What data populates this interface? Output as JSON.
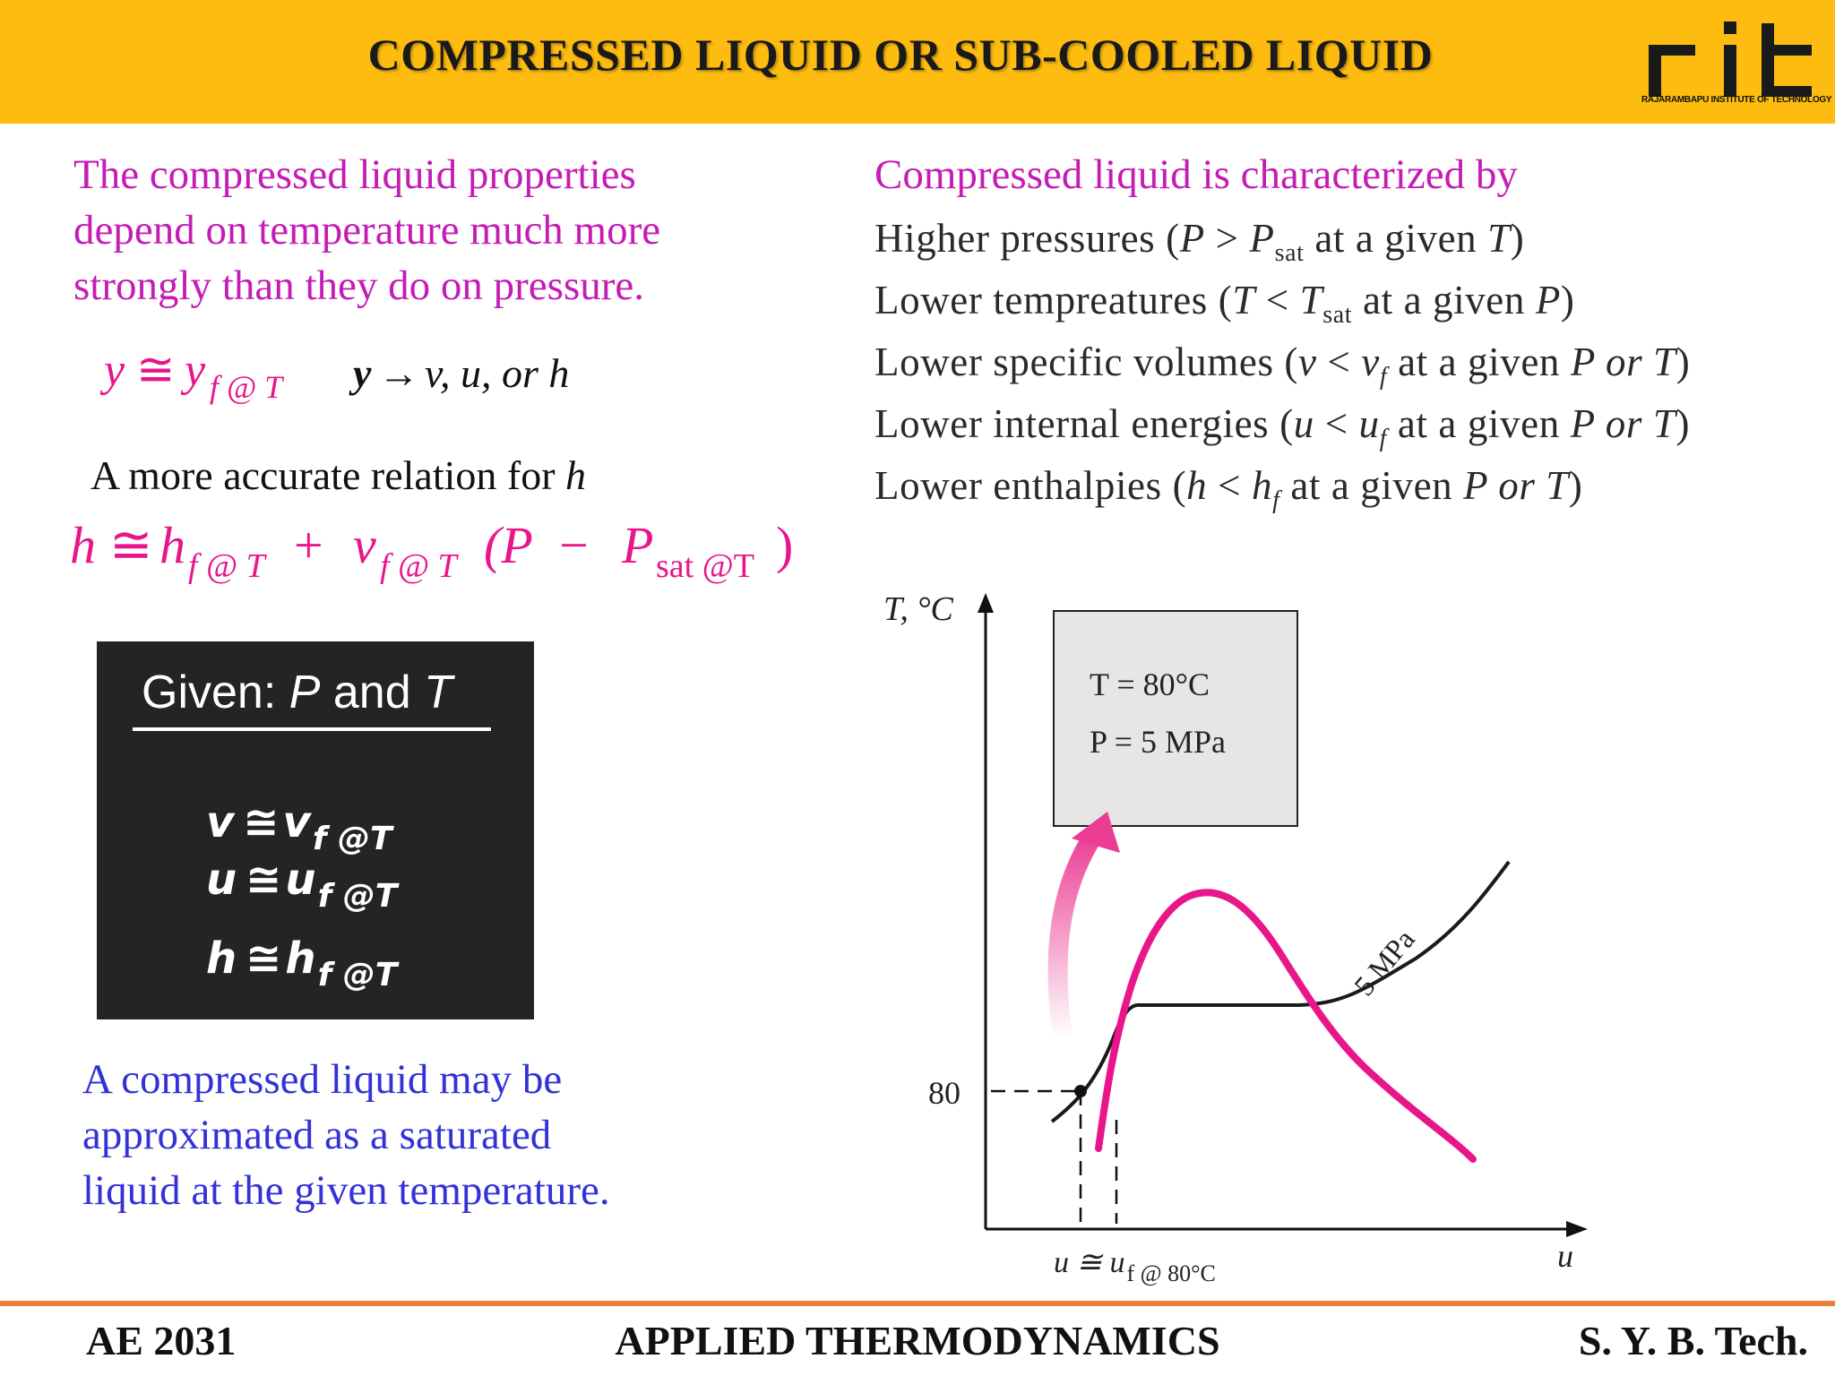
{
  "header": {
    "title": "COMPRESSED LIQUID OR SUB-COOLED LIQUID",
    "logo_caption": "RAJARAMBAPU INSTITUTE OF TECHNOLOGY",
    "logo_color": "#1a1a1a",
    "accent": "#fdbc0f"
  },
  "left": {
    "intro": "The compressed liquid properties depend on temperature much more strongly than they do on pressure.",
    "approx_formula": {
      "lhs": "y",
      "approx": "≅",
      "rhs_main": "y",
      "rhs_sub": "f @ T",
      "y": "y",
      "arrow": "→",
      "list": "v, u, or h"
    },
    "accurate_label": "A more accurate relation for",
    "accurate_var": "h",
    "h_formula": {
      "h": "h",
      "approx": "≅",
      "hf": "h",
      "hf_sub": "f @ T",
      "plus": "+",
      "vf": "v",
      "vf_sub": "f @ T",
      "open": "(P",
      "minus": "−",
      "psat": "P",
      "psat_sub": "sat @T",
      "close": ")"
    },
    "given_box": {
      "title_prefix": "Given: ",
      "title_p": "P",
      "title_and": " and ",
      "title_t": "T",
      "rows": [
        {
          "var": "v",
          "approx": "≅",
          "sym": "v",
          "sub": "f @T"
        },
        {
          "var": "u",
          "approx": "≅",
          "sym": "u",
          "sub": "f @T"
        },
        {
          "var": "h",
          "approx": "≅",
          "sym": "h",
          "sub": "f @T"
        }
      ]
    },
    "note": "A compressed liquid may be approximated as a saturated liquid at the given temperature."
  },
  "right": {
    "title": "Compressed liquid is characterized by",
    "items": [
      {
        "lead": "Higher pressures (",
        "a": "P",
        "op": " > ",
        "b": "P",
        "sub": "sat",
        "tail": " at a given ",
        "c": "T",
        "end": ")"
      },
      {
        "lead": "Lower tempreatures (",
        "a": "T",
        "op": " < ",
        "b": "T",
        "sub": "sat",
        "tail": " at a given ",
        "c": "P",
        "end": ")"
      },
      {
        "lead": "Lower specific volumes (",
        "a": "v",
        "op": " < ",
        "b": "v",
        "sub": "f",
        "tail": " at a given ",
        "c": "P or T",
        "end": ")"
      },
      {
        "lead": "Lower internal energies (",
        "a": "u",
        "op": " < ",
        "b": "u",
        "sub": "f",
        "tail": " at a given ",
        "c": "P or T",
        "end": ")"
      },
      {
        "lead": "Lower enthalpies (",
        "a": "h",
        "op": " < ",
        "b": "h",
        "sub": "f",
        "tail": " at a given ",
        "c": "P or T",
        "end": ")"
      }
    ]
  },
  "diagram": {
    "y_axis_label": "T, °C",
    "x_axis_label": "u",
    "tick_80": "80",
    "box_line1": "T = 80°C",
    "box_line2": "P = 5 MPa",
    "isobar_label": "5 MPa",
    "x_marker": "u ≅ u",
    "x_marker_sub": "f @ 80°C",
    "dome_color": "#e8168a",
    "arrow_color": "#ea3d93"
  },
  "footer": {
    "left": "AE 2031",
    "center": "APPLIED THERMODYNAMICS",
    "right": "S. Y. B. Tech.",
    "line_color": "#e8803a"
  }
}
